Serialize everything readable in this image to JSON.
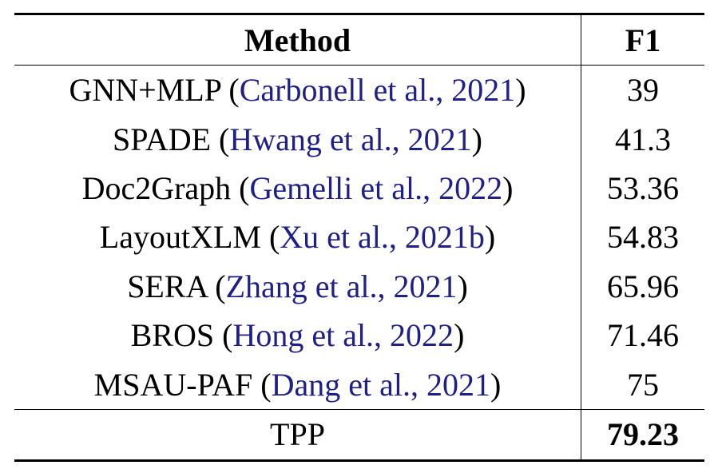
{
  "table": {
    "header": [
      "Method",
      "F1"
    ],
    "rows": [
      {
        "method": "GNN+MLP",
        "citation": "Carbonell et al., 2021",
        "f1": "39"
      },
      {
        "method": "SPADE",
        "citation": "Hwang et al., 2021",
        "f1": "41.3"
      },
      {
        "method": "Doc2Graph",
        "citation": "Gemelli et al., 2022",
        "f1": "53.36"
      },
      {
        "method": "LayoutXLM",
        "citation": "Xu et al., 2021b",
        "f1": "54.83"
      },
      {
        "method": "SERA",
        "citation": "Zhang et al., 2021",
        "f1": "65.96"
      },
      {
        "method": "BROS",
        "citation": "Hong et al., 2022",
        "f1": "71.46"
      },
      {
        "method": "MSAU-PAF",
        "citation": "Dang et al., 2021",
        "f1": "75"
      }
    ],
    "final": {
      "method": "TPP",
      "f1": "79.23"
    }
  }
}
